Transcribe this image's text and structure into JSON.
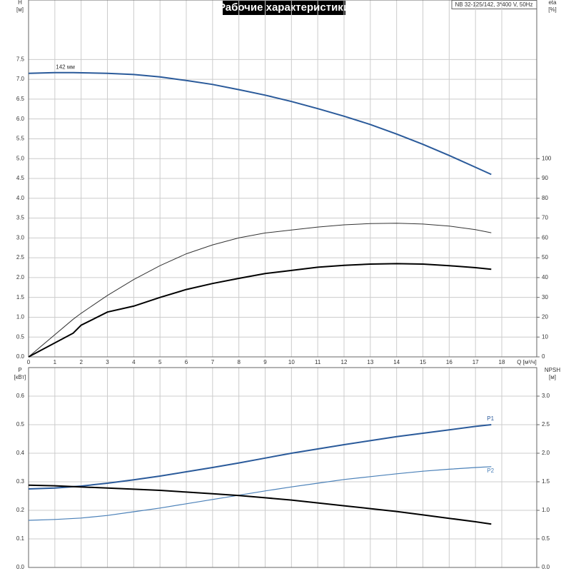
{
  "chart_data": [
    {
      "type": "line",
      "title": "Рабочие характеристики",
      "subtitle": "NB 32-125/142, 3*400 V, 50Hz",
      "ylabel": "H",
      "ylabel_unit": "[м]",
      "y2label": "eta",
      "y2label_unit": "[%]",
      "xlabel": "Q [м³/ч]",
      "xlim": [
        0,
        19.33
      ],
      "xticks": [
        0,
        1,
        2,
        3,
        4,
        5,
        6,
        7,
        8,
        9,
        10,
        11,
        12,
        13,
        14,
        15,
        16,
        17,
        18
      ],
      "ylim": [
        0,
        9
      ],
      "yticks": [
        {
          "value": 0,
          "label": "0.0"
        },
        0.5,
        {
          "value": 1,
          "label": "1.0"
        },
        1.5,
        {
          "value": 2,
          "label": "2.0"
        },
        2.5,
        {
          "value": 3,
          "label": "3.0"
        },
        3.5,
        {
          "value": 4,
          "label": "4.0"
        },
        4.5,
        {
          "value": 5,
          "label": "5.0"
        },
        5.5,
        {
          "value": 6,
          "label": "6.0"
        },
        6.5,
        {
          "value": 7,
          "label": "7.0"
        },
        7.5
      ],
      "y2lim": [
        0,
        180
      ],
      "y2ticks": [
        0,
        10,
        20,
        30,
        40,
        50,
        60,
        70,
        80,
        90,
        100
      ],
      "grid": true,
      "series": [
        {
          "color": "#2a5a9a",
          "width": 2,
          "x": [
            0,
            1,
            1.7,
            3,
            4,
            5,
            6,
            7,
            8,
            9,
            10,
            11,
            12,
            13,
            14,
            15,
            16,
            17,
            17.6
          ],
          "values": [
            7.15,
            7.17,
            7.17,
            7.15,
            7.12,
            7.06,
            6.97,
            6.87,
            6.74,
            6.6,
            6.44,
            6.26,
            6.07,
            5.86,
            5.62,
            5.36,
            5.08,
            4.78,
            4.6
          ]
        },
        {
          "axis": "y2",
          "color": "#333333",
          "width": 1,
          "x": [
            0,
            1.7,
            2,
            3,
            4,
            5,
            6,
            7,
            8,
            9,
            10,
            11,
            12,
            13,
            14,
            15,
            16,
            17,
            17.6
          ],
          "values": [
            0,
            19,
            22,
            31,
            39,
            46,
            52,
            56.5,
            60,
            62.5,
            64,
            65.5,
            66.6,
            67.2,
            67.4,
            67,
            66,
            64.2,
            62.6
          ]
        },
        {
          "axis": "y2",
          "color": "#000000",
          "width": 2,
          "x": [
            0,
            1.7,
            2,
            3,
            4,
            5,
            6,
            7,
            8,
            9,
            10,
            11,
            12,
            13,
            14,
            15,
            16,
            17,
            17.6
          ],
          "values": [
            0,
            12,
            16,
            22.6,
            25.6,
            30,
            34,
            37,
            39.6,
            42,
            43.6,
            45.2,
            46.2,
            46.8,
            47,
            46.8,
            46,
            45,
            44.2
          ]
        }
      ],
      "annotations": [
        {
          "text": "142 мм",
          "x": 1.4,
          "y": 7.3
        }
      ]
    },
    {
      "type": "line",
      "ylabel": "P",
      "ylabel_unit": "[кВт]",
      "y2label": "NPSH",
      "y2label_unit": "[м]",
      "xlim": [
        0,
        19.33
      ],
      "xticks": [
        0,
        1,
        2,
        3,
        4,
        5,
        6,
        7,
        8,
        9,
        10,
        11,
        12,
        13,
        14,
        15,
        16,
        17,
        18
      ],
      "xtick_labels": false,
      "ylim": [
        0,
        0.7
      ],
      "yticks": [
        {
          "value": 0,
          "label": "0.0"
        },
        0.1,
        0.2,
        0.3,
        0.4,
        0.5,
        0.6
      ],
      "y2lim": [
        0,
        3.5
      ],
      "y2ticks": [
        {
          "value": 0,
          "label": "0.0"
        },
        0.5,
        {
          "value": 1,
          "label": "1.0"
        },
        1.5,
        {
          "value": 2,
          "label": "2.0"
        },
        2.5,
        {
          "value": 3,
          "label": "3.0"
        }
      ],
      "grid": true,
      "series": [
        {
          "name": "P1",
          "color": "#2a5a9a",
          "width": 2,
          "x": [
            0,
            1,
            2,
            3,
            4,
            5,
            6,
            7,
            8,
            9,
            10,
            11,
            12,
            13,
            14,
            15,
            16,
            17,
            17.6
          ],
          "values": [
            0.275,
            0.278,
            0.285,
            0.295,
            0.307,
            0.32,
            0.335,
            0.35,
            0.366,
            0.383,
            0.4,
            0.415,
            0.43,
            0.444,
            0.458,
            0.47,
            0.482,
            0.494,
            0.5
          ]
        },
        {
          "name": "P2",
          "color": "#4a80b8",
          "width": 1.2,
          "x": [
            0,
            1,
            2,
            3,
            4,
            5,
            6,
            7,
            8,
            9,
            10,
            11,
            12,
            13,
            14,
            15,
            16,
            17,
            17.6
          ],
          "values": [
            0.165,
            0.168,
            0.173,
            0.182,
            0.195,
            0.208,
            0.223,
            0.238,
            0.253,
            0.268,
            0.282,
            0.295,
            0.308,
            0.318,
            0.328,
            0.337,
            0.344,
            0.35,
            0.353
          ]
        },
        {
          "axis": "y2",
          "color": "#000000",
          "width": 2,
          "x": [
            0,
            1,
            2,
            3,
            4,
            5,
            6,
            7,
            8,
            9,
            10,
            11,
            12,
            13,
            14,
            15,
            16,
            17,
            17.6
          ],
          "values": [
            1.44,
            1.43,
            1.41,
            1.39,
            1.37,
            1.35,
            1.32,
            1.29,
            1.26,
            1.22,
            1.18,
            1.13,
            1.08,
            1.03,
            0.98,
            0.92,
            0.86,
            0.8,
            0.76
          ]
        }
      ]
    }
  ]
}
